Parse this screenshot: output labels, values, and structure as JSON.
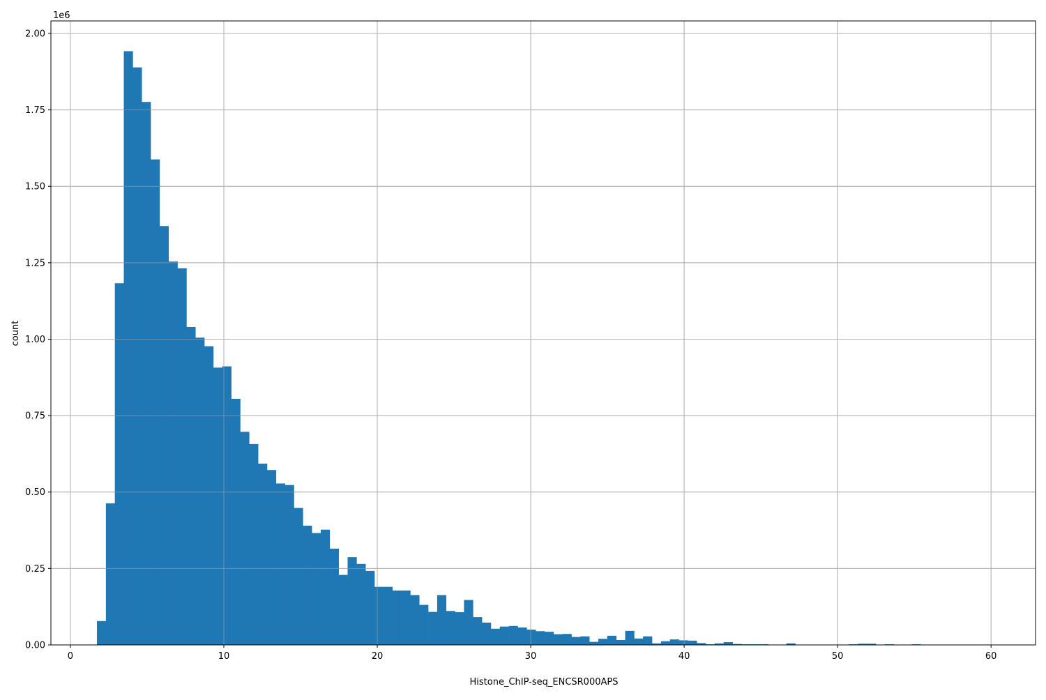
{
  "chart_data": {
    "type": "bar",
    "title": "",
    "xlabel": "Histone_ChIP-seq_ENCSR000APS",
    "ylabel": "count",
    "y_offset_label": "1e6",
    "xlim": [
      -1.27,
      62.9
    ],
    "ylim": [
      0,
      2.041
    ],
    "grid": true,
    "bar_color": "#1f77b4",
    "grid_color": "#b0b0b0",
    "bin_start": 1.73,
    "bin_width": 0.5835,
    "x_ticks": [
      0,
      10,
      20,
      30,
      40,
      50,
      60
    ],
    "x_tick_labels": [
      "0",
      "10",
      "20",
      "30",
      "40",
      "50",
      "60"
    ],
    "y_ticks": [
      0,
      0.25,
      0.5,
      0.75,
      1.0,
      1.25,
      1.5,
      1.75,
      2.0
    ],
    "y_tick_labels": [
      "0.00",
      "0.25",
      "0.50",
      "0.75",
      "1.00",
      "1.25",
      "1.50",
      "1.75",
      "2.00"
    ],
    "values_in_millions": [
      0.078,
      0.463,
      1.183,
      1.942,
      1.889,
      1.776,
      1.588,
      1.37,
      1.254,
      1.232,
      1.04,
      1.005,
      0.977,
      0.907,
      0.911,
      0.805,
      0.697,
      0.657,
      0.593,
      0.572,
      0.528,
      0.523,
      0.448,
      0.39,
      0.366,
      0.377,
      0.315,
      0.229,
      0.287,
      0.265,
      0.242,
      0.19,
      0.19,
      0.178,
      0.178,
      0.163,
      0.131,
      0.108,
      0.163,
      0.111,
      0.107,
      0.147,
      0.091,
      0.073,
      0.053,
      0.06,
      0.062,
      0.057,
      0.05,
      0.045,
      0.043,
      0.035,
      0.036,
      0.026,
      0.028,
      0.01,
      0.02,
      0.03,
      0.016,
      0.046,
      0.021,
      0.028,
      0.005,
      0.012,
      0.018,
      0.015,
      0.014,
      0.006,
      0.002,
      0.005,
      0.009,
      0.003,
      0.002,
      0.002,
      0.002,
      0.0,
      0.0,
      0.005,
      0.0,
      0.0,
      0.0,
      0.0,
      0.0,
      0.0,
      0.002,
      0.004,
      0.004,
      0.0,
      0.002,
      0.0,
      0.0,
      0.002,
      0.0,
      0.0,
      0.0,
      0.0,
      0.0,
      0.0,
      0.0,
      0.0
    ]
  }
}
